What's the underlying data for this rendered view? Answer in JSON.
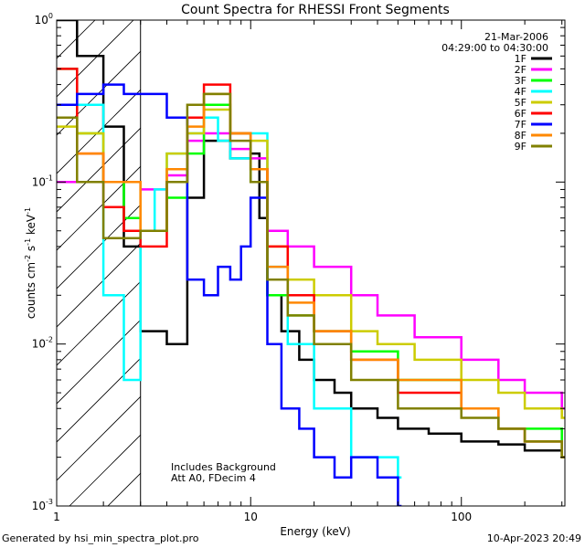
{
  "chart_data": {
    "type": "line",
    "title": "Count Spectra for RHESSI Front Segments",
    "xlabel": "Energy (keV)",
    "ylabel": "counts cm-2 s-1 keV-1",
    "xscale": "log",
    "yscale": "log",
    "xlim": [
      1.2,
      310
    ],
    "ylim": [
      0.001,
      1.0
    ],
    "x_ticks": [
      {
        "value": 1,
        "label": "1"
      },
      {
        "value": 10,
        "label": "10"
      },
      {
        "value": 100,
        "label": "100"
      }
    ],
    "y_ticks": [
      {
        "value": 1.0,
        "base": "10",
        "exp": "0"
      },
      {
        "value": 0.1,
        "base": "10",
        "exp": "-1"
      },
      {
        "value": 0.01,
        "base": "10",
        "exp": "-2"
      },
      {
        "value": 0.001,
        "base": "10",
        "exp": "-3"
      }
    ],
    "date": "21-Mar-2006",
    "time_range": "04:29:00 to 04:30:00",
    "annotations": [
      "Includes Background",
      "Att A0, FDecim 4"
    ],
    "hatched_region_end_kev": 3.0,
    "series": [
      {
        "name": "1F",
        "color": "#000000",
        "x": [
          1.2,
          1.5,
          2.0,
          2.5,
          3.0,
          4.0,
          5.0,
          6.0,
          8.0,
          10.0,
          11.0,
          12.0,
          14.0,
          17.0,
          20.0,
          25.0,
          30.0,
          40.0,
          50.0,
          70.0,
          100.0,
          150.0,
          200.0,
          300.0
        ],
        "y": [
          1.0,
          0.6,
          0.22,
          0.04,
          0.012,
          0.01,
          0.08,
          0.18,
          0.14,
          0.15,
          0.06,
          0.02,
          0.012,
          0.008,
          0.006,
          0.005,
          0.004,
          0.0035,
          0.003,
          0.0028,
          0.0025,
          0.0024,
          0.0022,
          0.002
        ]
      },
      {
        "name": "2F",
        "color": "#ff00ff",
        "x": [
          1.2,
          2.0,
          3.0,
          4.0,
          5.0,
          6.0,
          8.0,
          10.0,
          12.0,
          15.0,
          20.0,
          30.0,
          40.0,
          60.0,
          100.0,
          150.0,
          200.0,
          300.0
        ],
        "y": [
          0.1,
          0.1,
          0.09,
          0.11,
          0.18,
          0.2,
          0.16,
          0.14,
          0.05,
          0.04,
          0.03,
          0.02,
          0.015,
          0.011,
          0.008,
          0.006,
          0.005,
          0.004
        ]
      },
      {
        "name": "3F",
        "color": "#00ff00",
        "x": [
          1.2,
          1.5,
          2.0,
          2.5,
          3.0,
          4.0,
          5.0,
          6.0,
          8.0,
          10.0,
          12.0,
          15.0,
          20.0,
          30.0,
          50.0,
          100.0,
          150.0,
          200.0,
          300.0
        ],
        "y": [
          0.5,
          0.2,
          0.1,
          0.06,
          0.05,
          0.08,
          0.15,
          0.3,
          0.2,
          0.1,
          0.02,
          0.015,
          0.012,
          0.009,
          0.006,
          0.004,
          0.003,
          0.003,
          0.002
        ]
      },
      {
        "name": "4F",
        "color": "#00ffff",
        "x": [
          1.2,
          1.5,
          2.0,
          2.5,
          3.0,
          3.5,
          4.0,
          5.0,
          6.0,
          7.0,
          8.0,
          10.0,
          12.0,
          15.0,
          20.0,
          30.0,
          50.0
        ],
        "y": [
          0.3,
          0.3,
          0.02,
          0.006,
          0.05,
          0.09,
          0.15,
          0.2,
          0.25,
          0.18,
          0.14,
          0.2,
          0.03,
          0.01,
          0.004,
          0.002,
          0.0015
        ]
      },
      {
        "name": "5F",
        "color": "#cccc00",
        "x": [
          1.2,
          1.5,
          2.0,
          3.0,
          4.0,
          5.0,
          6.0,
          8.0,
          10.0,
          12.0,
          15.0,
          20.0,
          30.0,
          40.0,
          60.0,
          100.0,
          150.0,
          200.0,
          300.0
        ],
        "y": [
          0.22,
          0.2,
          0.1,
          0.05,
          0.15,
          0.2,
          0.28,
          0.2,
          0.18,
          0.04,
          0.025,
          0.02,
          0.012,
          0.01,
          0.008,
          0.006,
          0.005,
          0.004,
          0.0035
        ]
      },
      {
        "name": "6F",
        "color": "#ff0000",
        "x": [
          1.2,
          1.5,
          2.0,
          2.5,
          3.0,
          4.0,
          5.0,
          6.0,
          8.0,
          10.0,
          12.0,
          15.0,
          20.0,
          30.0,
          50.0,
          100.0,
          150.0,
          200.0,
          300.0
        ],
        "y": [
          0.5,
          0.15,
          0.07,
          0.05,
          0.04,
          0.1,
          0.25,
          0.4,
          0.2,
          0.12,
          0.04,
          0.02,
          0.012,
          0.008,
          0.005,
          0.004,
          0.003,
          0.0025,
          0.002
        ]
      },
      {
        "name": "7F",
        "color": "#0000ff",
        "x": [
          1.2,
          1.5,
          2.0,
          2.5,
          3.0,
          4.0,
          5.0,
          6.0,
          7.0,
          8.0,
          9.0,
          10.0,
          12.0,
          14.0,
          17.0,
          20.0,
          25.0,
          30.0,
          40.0,
          50.0
        ],
        "y": [
          0.3,
          0.35,
          0.4,
          0.35,
          0.35,
          0.25,
          0.025,
          0.02,
          0.03,
          0.025,
          0.04,
          0.08,
          0.01,
          0.004,
          0.003,
          0.002,
          0.0015,
          0.002,
          0.0015,
          0.001
        ]
      },
      {
        "name": "8F",
        "color": "#ff8800",
        "x": [
          1.2,
          1.5,
          2.0,
          3.0,
          4.0,
          5.0,
          6.0,
          8.0,
          10.0,
          12.0,
          15.0,
          20.0,
          30.0,
          50.0,
          100.0,
          150.0,
          200.0,
          300.0
        ],
        "y": [
          0.25,
          0.15,
          0.1,
          0.05,
          0.12,
          0.22,
          0.35,
          0.2,
          0.12,
          0.03,
          0.018,
          0.012,
          0.008,
          0.006,
          0.004,
          0.003,
          0.0025,
          0.002
        ]
      },
      {
        "name": "9F",
        "color": "#808000",
        "x": [
          1.2,
          1.5,
          2.0,
          2.5,
          3.0,
          4.0,
          5.0,
          6.0,
          8.0,
          10.0,
          12.0,
          15.0,
          20.0,
          30.0,
          50.0,
          100.0,
          150.0,
          200.0,
          300.0
        ],
        "y": [
          0.25,
          0.1,
          0.045,
          0.045,
          0.05,
          0.1,
          0.3,
          0.35,
          0.18,
          0.1,
          0.025,
          0.015,
          0.01,
          0.006,
          0.004,
          0.0035,
          0.003,
          0.0025,
          0.002
        ]
      }
    ]
  },
  "footer": {
    "left": "Generated by hsi_min_spectra_plot.pro",
    "right": "10-Apr-2023 20:49"
  }
}
